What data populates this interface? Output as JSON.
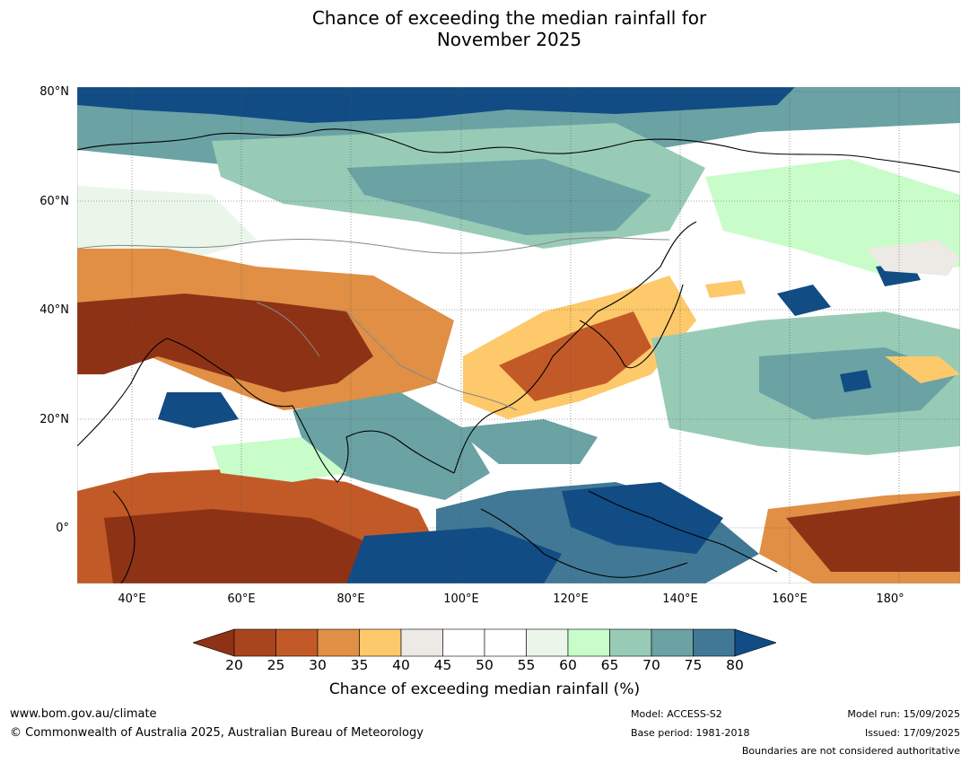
{
  "title": {
    "line1": "Chance of exceeding the median rainfall for",
    "line2": "November 2025"
  },
  "map": {
    "lat_labels": [
      "80°N",
      "60°N",
      "40°N",
      "20°N",
      "0°"
    ],
    "lon_labels": [
      "40°E",
      "60°E",
      "80°E",
      "100°E",
      "120°E",
      "140°E",
      "160°E",
      "180°"
    ],
    "lon_range": [
      30,
      191
    ],
    "lat_range": [
      -10,
      80
    ]
  },
  "colorbar": {
    "ticks": [
      "20",
      "25",
      "30",
      "35",
      "40",
      "45",
      "50",
      "55",
      "60",
      "65",
      "70",
      "75",
      "80"
    ],
    "label": "Chance of exceeding median rainfall (%)",
    "low_color": "#8e3216",
    "colors": [
      "#a8451f",
      "#c25a28",
      "#e08f45",
      "#fdc96a",
      "#ede9e4",
      "#ffffff",
      "#ffffff",
      "#eaf6ea",
      "#c8fcc8",
      "#98cbb6",
      "#6ba2a4",
      "#417895"
    ],
    "high_color": "#124c85"
  },
  "footer": {
    "website": "www.bom.gov.au/climate",
    "copyright": "© Commonwealth of Australia 2025, Australian Bureau of Meteorology",
    "model": "Model: ACCESS-S2",
    "base_period": "Base period: 1981-2018",
    "model_run": "Model run: 15/09/2025",
    "issued": "Issued: 17/09/2025",
    "disclaimer": "Boundaries are not considered authoritative"
  }
}
